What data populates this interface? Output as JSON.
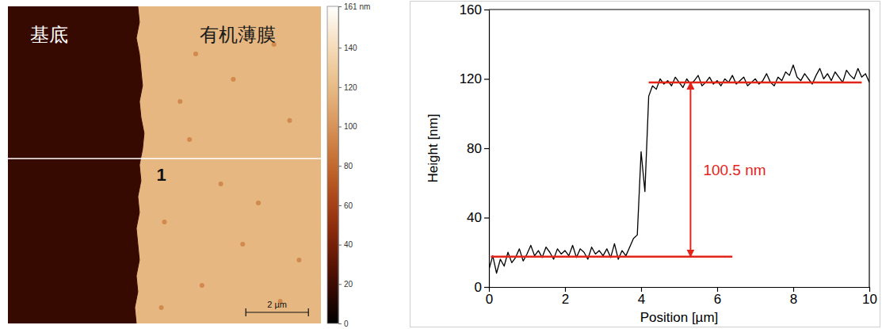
{
  "chart_data": [
    {
      "type": "heatmap",
      "xlim": [
        0,
        10
      ],
      "ylim": [
        0,
        10
      ],
      "tick_labels": false,
      "region_labels": [
        "基底",
        "有机薄膜"
      ],
      "region_heights": [
        18,
        118
      ],
      "edge": {
        "y": [
          0,
          0.5,
          1,
          1.5,
          2,
          2.5,
          3,
          3.5,
          4,
          4.5,
          5,
          5.5,
          6,
          6.5,
          7,
          7.5,
          8,
          8.5,
          9,
          9.5,
          10
        ],
        "x": [
          4.15,
          4.2,
          4.1,
          4.2,
          4.25,
          4.3,
          4.2,
          4.25,
          4.35,
          4.3,
          4.2,
          4.25,
          4.15,
          4.2,
          4.1,
          4.15,
          4.2,
          4.1,
          4.15,
          4.05,
          4.1
        ]
      },
      "pits": {
        "x": [
          6.0,
          7.2,
          8.5,
          5.5,
          9.0,
          6.8,
          8.0,
          5.0,
          7.5,
          9.3,
          6.2,
          8.7,
          4.9,
          5.8
        ],
        "y": [
          1.5,
          2.3,
          1.2,
          3.0,
          3.6,
          5.6,
          6.2,
          6.8,
          7.5,
          8.0,
          8.8,
          9.3,
          9.5,
          4.2
        ],
        "values": [
          95,
          95,
          95,
          95,
          95,
          95,
          95,
          95,
          95,
          95,
          95,
          95,
          95,
          95
        ]
      },
      "profile_line": {
        "y": 4.8,
        "label": "1"
      },
      "scale_bar": {
        "length": 2,
        "label": "2 µm"
      },
      "colorbar": {
        "range": [
          0,
          161
        ],
        "ticks": [
          0,
          20,
          40,
          60,
          80,
          100,
          120,
          140,
          {
            "value": 161,
            "label": "161 nm"
          }
        ]
      }
    },
    {
      "type": "line",
      "x_label": "Position [µm]",
      "y_label": "Height [nm]",
      "xlim": [
        0,
        10
      ],
      "xticks": [
        0,
        2,
        4,
        6,
        8,
        10
      ],
      "ylim": [
        0,
        160
      ],
      "yticks": [
        0,
        40,
        80,
        120,
        160
      ],
      "x": [
        0,
        0.1,
        0.2,
        0.3,
        0.4,
        0.5,
        0.6,
        0.7,
        0.8,
        0.9,
        1,
        1.1,
        1.2,
        1.3,
        1.4,
        1.5,
        1.6,
        1.7,
        1.8,
        1.9,
        2,
        2.1,
        2.2,
        2.3,
        2.4,
        2.5,
        2.6,
        2.7,
        2.8,
        2.9,
        3,
        3.1,
        3.2,
        3.3,
        3.4,
        3.5,
        3.6,
        3.7,
        3.8,
        3.9,
        4,
        4.1,
        4.2,
        4.3,
        4.4,
        4.5,
        4.6,
        4.7,
        4.8,
        4.9,
        5,
        5.1,
        5.2,
        5.3,
        5.4,
        5.5,
        5.6,
        5.7,
        5.8,
        5.9,
        6,
        6.1,
        6.2,
        6.3,
        6.4,
        6.5,
        6.6,
        6.7,
        6.8,
        6.9,
        7,
        7.1,
        7.2,
        7.3,
        7.4,
        7.5,
        7.6,
        7.7,
        7.8,
        7.9,
        8,
        8.1,
        8.2,
        8.3,
        8.4,
        8.5,
        8.6,
        8.7,
        8.8,
        8.9,
        9,
        9.1,
        9.2,
        9.3,
        9.4,
        9.5,
        9.6,
        9.7,
        9.8,
        9.9,
        10
      ],
      "series": [
        {
          "color": "#000000",
          "values": [
            10,
            18,
            8,
            16,
            12,
            20,
            14,
            17,
            22,
            15,
            19,
            24,
            18,
            21,
            17,
            23,
            20,
            16,
            22,
            19,
            21,
            18,
            24,
            17,
            22,
            20,
            16,
            23,
            19,
            21,
            18,
            22,
            17,
            25,
            16,
            21,
            18,
            23,
            28,
            30,
            78,
            55,
            110,
            116,
            114,
            120,
            117,
            119,
            116,
            121,
            118,
            115,
            120,
            117,
            119,
            122,
            116,
            118,
            121,
            117,
            119,
            116,
            120,
            118,
            122,
            117,
            119,
            121,
            116,
            118,
            120,
            117,
            119,
            123,
            118,
            116,
            121,
            119,
            124,
            122,
            128,
            121,
            119,
            123,
            120,
            117,
            122,
            126,
            120,
            123,
            119,
            124,
            121,
            118,
            125,
            122,
            120,
            126,
            121,
            123,
            118
          ]
        }
      ],
      "reference_lines": [
        {
          "y": 17.5,
          "x": [
            0.05,
            6.4
          ]
        },
        {
          "y": 118,
          "x": [
            4.2,
            9.8
          ]
        }
      ],
      "arrow": {
        "x": 5.3,
        "y": [
          17.5,
          118
        ],
        "label": "100.5 nm"
      }
    }
  ]
}
